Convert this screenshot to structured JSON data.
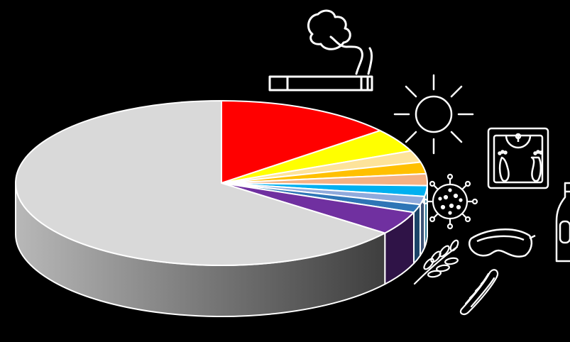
{
  "chart_data": {
    "type": "pie",
    "style": "3d-exploded-free",
    "start_angle_deg": 0,
    "direction": "clockwise",
    "slices": [
      {
        "value": 14.0,
        "color": "#ff0000",
        "side_color": "#8a0000"
      },
      {
        "value": 4.6,
        "color": "#ffff00",
        "side_color": "#8a8a00"
      },
      {
        "value": 2.3,
        "color": "#fde39a",
        "side_color": "#8a7b52"
      },
      {
        "value": 2.3,
        "color": "#ffc000",
        "side_color": "#8a6800"
      },
      {
        "value": 2.3,
        "color": "#f4b183",
        "side_color": "#7e5b42"
      },
      {
        "value": 2.1,
        "color": "#00b0f0",
        "side_color": "#005d80"
      },
      {
        "value": 1.6,
        "color": "#8faadc",
        "side_color": "#3e5478"
      },
      {
        "value": 1.6,
        "color": "#2e75b6",
        "side_color": "#1b4468"
      },
      {
        "value": 4.6,
        "color": "#7030a0",
        "side_color": "#2f1347"
      },
      {
        "value": 64.6,
        "color": "#d9d9d9",
        "side_color": "#6f6f6f"
      }
    ],
    "icons": [
      "cigarette-icon",
      "sun-icon",
      "weighing-scale-icon",
      "beer-bottle-icon",
      "virus-icon",
      "goggles-icon",
      "wheat-icon",
      "hot-dog-icon"
    ],
    "background": "#000000",
    "outline_color": "#ffffff"
  }
}
